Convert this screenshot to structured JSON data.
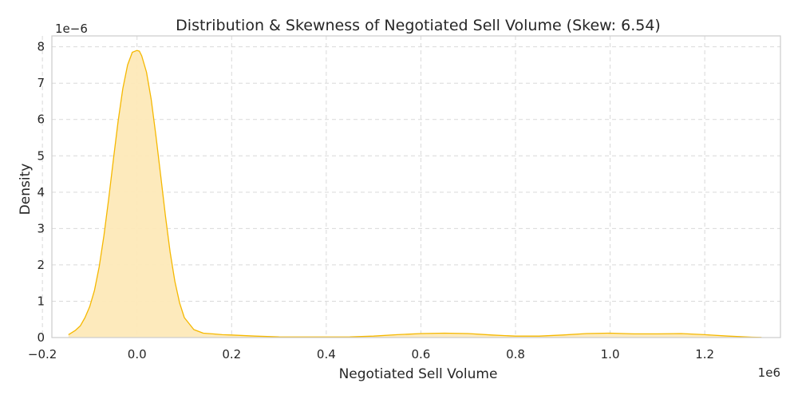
{
  "chart_data": {
    "type": "area",
    "title": "Distribution & Skewness of Negotiated Sell Volume (Skew: 6.54)",
    "xlabel": "Negotiated Sell Volume",
    "ylabel": "Density",
    "x_offset_text": "1e6",
    "y_offset_text": "1e−6",
    "xlim": [
      -0.18,
      1.36
    ],
    "ylim": [
      0,
      8.3
    ],
    "x_ticks": [
      -0.2,
      0.0,
      0.2,
      0.4,
      0.6,
      0.8,
      1.0,
      1.2
    ],
    "x_tick_labels": [
      "−0.2",
      "0.0",
      "0.2",
      "0.4",
      "0.6",
      "0.8",
      "1.0",
      "1.2"
    ],
    "y_ticks": [
      0,
      1,
      2,
      3,
      4,
      5,
      6,
      7,
      8
    ],
    "y_tick_labels": [
      "0",
      "1",
      "2",
      "3",
      "4",
      "5",
      "6",
      "7",
      "8"
    ],
    "grid": true,
    "colors": {
      "line": "#f5b800",
      "fill": "#fde9b8",
      "grid": "#d9d9d9",
      "frame": "#cccccc",
      "text": "#262626"
    },
    "series": [
      {
        "x": [
          -0.145,
          -0.13,
          -0.12,
          -0.11,
          -0.1,
          -0.09,
          -0.08,
          -0.07,
          -0.06,
          -0.05,
          -0.04,
          -0.03,
          -0.02,
          -0.01,
          0.0,
          0.005,
          0.01,
          0.02,
          0.03,
          0.04,
          0.05,
          0.06,
          0.07,
          0.08,
          0.09,
          0.1,
          0.12,
          0.14,
          0.16,
          0.18,
          0.2,
          0.25,
          0.3,
          0.35,
          0.4,
          0.45,
          0.5,
          0.55,
          0.6,
          0.65,
          0.7,
          0.75,
          0.8,
          0.85,
          0.9,
          0.95,
          1.0,
          1.05,
          1.1,
          1.15,
          1.2,
          1.25,
          1.3,
          1.32
        ],
        "y": [
          0.08,
          0.2,
          0.32,
          0.55,
          0.85,
          1.3,
          1.95,
          2.8,
          3.8,
          4.9,
          5.95,
          6.85,
          7.5,
          7.85,
          7.9,
          7.88,
          7.75,
          7.3,
          6.55,
          5.55,
          4.45,
          3.35,
          2.35,
          1.55,
          0.95,
          0.55,
          0.22,
          0.12,
          0.1,
          0.08,
          0.07,
          0.04,
          0.02,
          0.015,
          0.015,
          0.02,
          0.04,
          0.08,
          0.11,
          0.12,
          0.11,
          0.07,
          0.04,
          0.04,
          0.07,
          0.11,
          0.12,
          0.1,
          0.1,
          0.11,
          0.08,
          0.04,
          0.01,
          0.005
        ]
      }
    ]
  }
}
